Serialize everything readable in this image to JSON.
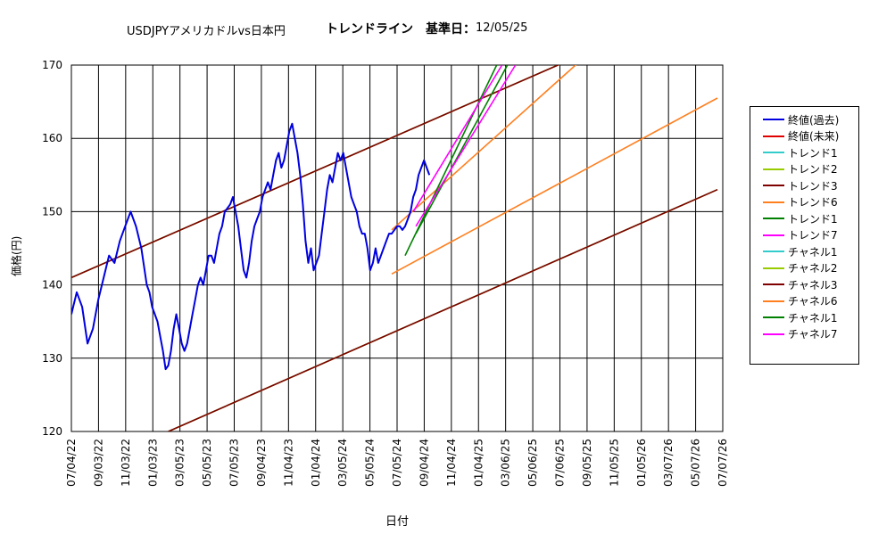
{
  "title_left": "USDJPYアメリカドルvs日本円",
  "title_right": "トレンドライン　基準日：",
  "title_date": "12/05/25",
  "chart_data": {
    "type": "line",
    "xlabel": "日付",
    "ylabel": "価格(円)",
    "ylim": [
      120,
      170
    ],
    "y_ticks": [
      "120",
      "130",
      "140",
      "150",
      "160",
      "170"
    ],
    "x_ticks": [
      "07/04/22",
      "09/03/22",
      "11/03/22",
      "01/03/23",
      "03/05/23",
      "05/05/23",
      "07/05/23",
      "09/04/23",
      "11/04/23",
      "01/04/24",
      "03/05/24",
      "05/05/24",
      "07/05/24",
      "09/04/24",
      "11/04/24",
      "01/04/25",
      "03/06/25",
      "05/06/25",
      "07/06/25",
      "09/05/25",
      "11/05/25",
      "01/05/26",
      "03/07/26",
      "05/07/26",
      "07/07/26"
    ],
    "grid": true,
    "legend_position": "right",
    "colors": {
      "close_past": "#0000e0",
      "close_future": "#e00000",
      "trend_cyan": "#33cccc",
      "trend_yellowgreen": "#99cc00",
      "trend_maroon": "#800000",
      "trend_orange": "#ff7f1f",
      "trend_green": "#008000",
      "trend_magenta": "#ff00ff"
    },
    "series": [
      {
        "name": "終値(過去)",
        "color": "#0000e0",
        "points": [
          [
            0,
            136
          ],
          [
            2,
            139
          ],
          [
            4,
            137
          ],
          [
            6,
            132
          ],
          [
            8,
            134
          ],
          [
            10,
            138
          ],
          [
            12,
            141
          ],
          [
            14,
            144
          ],
          [
            16,
            143
          ],
          [
            18,
            146
          ],
          [
            20,
            148
          ],
          [
            22,
            150
          ],
          [
            24,
            148
          ],
          [
            26,
            145
          ],
          [
            28,
            140
          ],
          [
            29,
            139
          ],
          [
            30,
            137
          ],
          [
            31,
            136
          ],
          [
            32,
            135
          ],
          [
            33,
            133
          ],
          [
            34,
            131
          ],
          [
            35,
            128.5
          ],
          [
            36,
            129
          ],
          [
            37,
            131
          ],
          [
            38,
            134
          ],
          [
            39,
            136
          ],
          [
            40,
            134
          ],
          [
            41,
            132
          ],
          [
            42,
            131
          ],
          [
            43,
            132
          ],
          [
            44,
            134
          ],
          [
            45,
            136
          ],
          [
            46,
            138
          ],
          [
            47,
            140
          ],
          [
            48,
            141
          ],
          [
            49,
            140
          ],
          [
            50,
            142
          ],
          [
            51,
            144
          ],
          [
            52,
            144
          ],
          [
            53,
            143
          ],
          [
            54,
            145
          ],
          [
            55,
            147
          ],
          [
            56,
            148
          ],
          [
            57,
            150
          ],
          [
            58,
            150.5
          ],
          [
            59,
            151
          ],
          [
            60,
            152
          ],
          [
            61,
            150
          ],
          [
            62,
            148
          ],
          [
            63,
            145
          ],
          [
            64,
            142
          ],
          [
            65,
            141
          ],
          [
            66,
            143
          ],
          [
            67,
            146
          ],
          [
            68,
            148
          ],
          [
            69,
            149
          ],
          [
            70,
            150
          ],
          [
            71,
            152
          ],
          [
            72,
            153
          ],
          [
            73,
            154
          ],
          [
            74,
            153
          ],
          [
            75,
            155
          ],
          [
            76,
            157
          ],
          [
            77,
            158
          ],
          [
            78,
            156
          ],
          [
            79,
            157
          ],
          [
            80,
            159
          ],
          [
            81,
            161
          ],
          [
            82,
            162
          ],
          [
            83,
            160
          ],
          [
            84,
            158
          ],
          [
            85,
            155
          ],
          [
            86,
            151
          ],
          [
            87,
            146
          ],
          [
            88,
            143
          ],
          [
            89,
            145
          ],
          [
            90,
            142
          ],
          [
            91,
            143
          ],
          [
            92,
            144
          ],
          [
            93,
            147
          ],
          [
            94,
            150
          ],
          [
            95,
            153
          ],
          [
            96,
            155
          ],
          [
            97,
            154
          ],
          [
            98,
            156
          ],
          [
            99,
            158
          ],
          [
            100,
            157
          ],
          [
            101,
            158
          ],
          [
            102,
            156
          ],
          [
            103,
            154
          ],
          [
            104,
            152
          ],
          [
            105,
            151
          ],
          [
            106,
            150
          ],
          [
            107,
            148
          ],
          [
            108,
            147
          ],
          [
            109,
            147
          ],
          [
            110,
            145
          ],
          [
            111,
            142
          ],
          [
            112,
            143
          ],
          [
            113,
            145
          ],
          [
            114,
            143
          ],
          [
            115,
            144
          ],
          [
            116,
            145
          ],
          [
            117,
            146
          ],
          [
            118,
            147
          ],
          [
            119,
            147
          ],
          [
            120,
            147.5
          ],
          [
            121,
            148
          ],
          [
            122,
            148
          ],
          [
            123,
            147.5
          ],
          [
            124,
            148
          ],
          [
            125,
            149
          ],
          [
            126,
            150
          ],
          [
            127,
            152
          ],
          [
            128,
            153
          ],
          [
            129,
            155
          ],
          [
            130,
            156
          ],
          [
            131,
            157
          ],
          [
            132,
            156
          ],
          [
            133,
            155
          ]
        ]
      },
      {
        "name": "終値(未来)",
        "color": "#e00000",
        "points": []
      },
      {
        "name": "トレンド1",
        "color": "#33cccc",
        "points": [
          [
            0,
            141
          ],
          [
            187,
            171
          ]
        ]
      },
      {
        "name": "トレンド2",
        "color": "#99cc00",
        "points": [
          [
            0,
            141
          ],
          [
            187,
            171
          ]
        ]
      },
      {
        "name": "トレンド3",
        "color": "#800000",
        "points": [
          [
            0,
            141
          ],
          [
            187,
            171
          ]
        ]
      },
      {
        "name": "トレンド6",
        "color": "#ff7f1f",
        "points": [
          [
            119,
            147.5
          ],
          [
            242,
            188
          ]
        ]
      },
      {
        "name": "トレンド1",
        "color": "#008000",
        "points": [
          [
            124,
            144
          ],
          [
            158,
            170
          ]
        ]
      },
      {
        "name": "トレンド7",
        "color": "#ff00ff",
        "points": [
          [
            127,
            150
          ],
          [
            160,
            170
          ]
        ]
      },
      {
        "name": "チャネル1",
        "color": "#33cccc",
        "points": [
          [
            36,
            120
          ],
          [
            240,
            153
          ]
        ]
      },
      {
        "name": "チャネル2",
        "color": "#99cc00",
        "points": [
          [
            36,
            120
          ],
          [
            240,
            153
          ]
        ]
      },
      {
        "name": "チャネル3",
        "color": "#800000",
        "points": [
          [
            36,
            120
          ],
          [
            240,
            153
          ]
        ]
      },
      {
        "name": "チャネル6",
        "color": "#ff7f1f",
        "points": [
          [
            119,
            141.5
          ],
          [
            240,
            165.5
          ]
        ]
      },
      {
        "name": "チャネル1",
        "color": "#008000",
        "points": [
          [
            128,
            147
          ],
          [
            162,
            170
          ]
        ]
      },
      {
        "name": "チャネル7",
        "color": "#ff00ff",
        "points": [
          [
            128,
            148
          ],
          [
            165,
            170
          ]
        ]
      }
    ]
  }
}
